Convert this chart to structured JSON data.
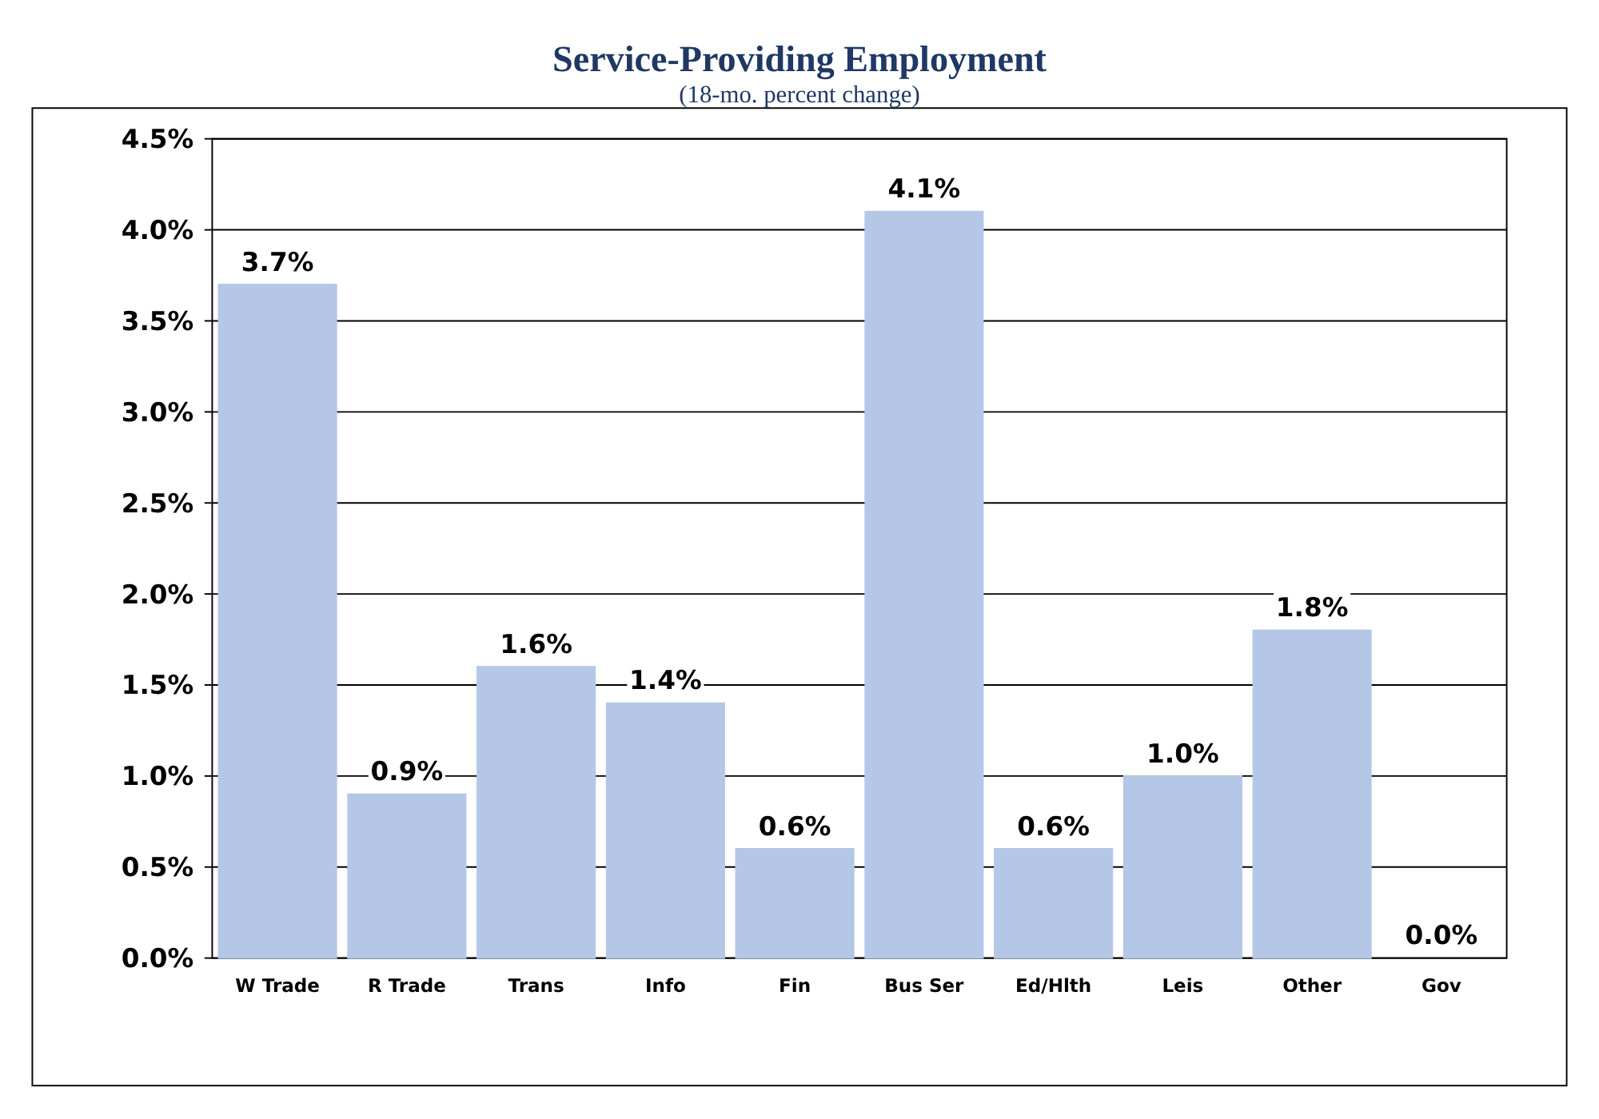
{
  "chart_data": {
    "type": "bar",
    "title": "Service-Providing Employment",
    "subtitle": "(18-mo. percent change)",
    "categories": [
      "W Trade",
      "R Trade",
      "Trans",
      "Info",
      "Fin",
      "Bus Ser",
      "Ed/Hlth",
      "Leis",
      "Other",
      "Gov"
    ],
    "values": [
      3.7,
      0.9,
      1.6,
      1.4,
      0.6,
      4.1,
      0.6,
      1.0,
      1.8,
      0.0
    ],
    "value_labels": [
      "3.7%",
      "0.9%",
      "1.6%",
      "1.4%",
      "0.6%",
      "4.1%",
      "0.6%",
      "1.0%",
      "1.8%",
      "0.0%"
    ],
    "color": "#b4c7e7",
    "ylim": [
      0,
      4.5
    ],
    "yticks": [
      {
        "value": 0,
        "label": "0.0%"
      },
      {
        "value": 0.5,
        "label": "0.5%"
      },
      {
        "value": 1,
        "label": "1.0%"
      },
      {
        "value": 1.5,
        "label": "1.5%"
      },
      {
        "value": 2,
        "label": "2.0%"
      },
      {
        "value": 2.5,
        "label": "2.5%"
      },
      {
        "value": 3,
        "label": "3.0%"
      },
      {
        "value": 3.5,
        "label": "3.5%"
      },
      {
        "value": 4,
        "label": "4.0%"
      },
      {
        "value": 4.5,
        "label": "4.5%"
      }
    ],
    "grid": "y"
  }
}
